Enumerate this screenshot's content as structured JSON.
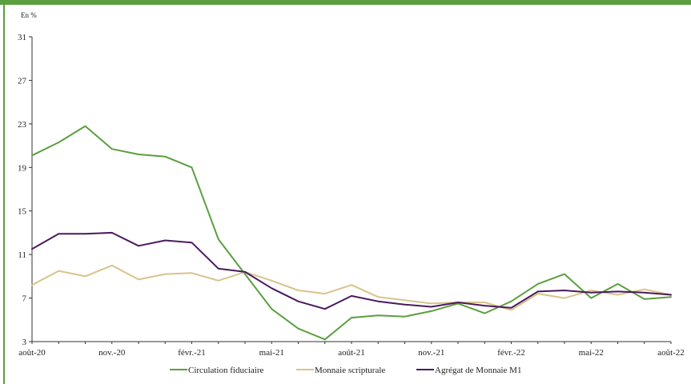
{
  "chart_data": {
    "type": "line",
    "ylabel": "En %",
    "ylim": [
      3,
      31
    ],
    "yticks": [
      3,
      7,
      11,
      15,
      19,
      23,
      27,
      31
    ],
    "x_tick_labels": [
      "août-20",
      "nov.-20",
      "févr.-21",
      "mai-21",
      "août-21",
      "nov.-21",
      "févr.-22",
      "mai-22",
      "août-22"
    ],
    "x": [
      "août-20",
      "sept.-20",
      "oct.-20",
      "nov.-20",
      "déc.-20",
      "janv.-21",
      "févr.-21",
      "mars-21",
      "avr.-21",
      "mai-21",
      "juin-21",
      "juil.-21",
      "août-21",
      "sept.-21",
      "oct.-21",
      "nov.-21",
      "déc.-21",
      "janv.-22",
      "févr.-22",
      "mars-22",
      "avr.-22",
      "mai-22",
      "juin-22",
      "juil.-22",
      "août-22"
    ],
    "grid": false,
    "legend_position": "bottom",
    "series": [
      {
        "name": "Circulation fiduciaire",
        "color": "#5b9f3f",
        "values": [
          20.1,
          21.3,
          22.8,
          20.7,
          20.2,
          20.0,
          19.0,
          12.4,
          9.2,
          6.0,
          4.2,
          3.2,
          5.2,
          5.4,
          5.3,
          5.8,
          6.5,
          5.6,
          6.7,
          8.3,
          9.2,
          7.0,
          8.3,
          6.9,
          7.1
        ]
      },
      {
        "name": "Monnaie scripturale",
        "color": "#d8c38a",
        "values": [
          8.2,
          9.5,
          9.0,
          10.0,
          8.7,
          9.2,
          9.3,
          8.6,
          9.4,
          8.6,
          7.7,
          7.4,
          8.2,
          7.1,
          6.8,
          6.5,
          6.6,
          6.6,
          5.9,
          7.4,
          7.0,
          7.7,
          7.3,
          7.8,
          7.3
        ]
      },
      {
        "name": "Agrégat de Monnaie M1",
        "color": "#4b1a5e",
        "values": [
          11.5,
          12.9,
          12.9,
          13.0,
          11.8,
          12.3,
          12.1,
          9.7,
          9.4,
          7.9,
          6.7,
          6.0,
          7.2,
          6.7,
          6.4,
          6.2,
          6.6,
          6.3,
          6.1,
          7.6,
          7.7,
          7.5,
          7.6,
          7.5,
          7.3
        ]
      }
    ]
  }
}
